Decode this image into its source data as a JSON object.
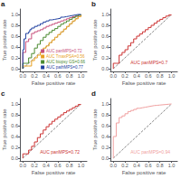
{
  "chart_data": [
    {
      "type": "line",
      "title": "a",
      "xlabel": "False positive rate",
      "ylabel": "True positive rate",
      "xlim": [
        -0.05,
        1.1
      ],
      "ylim": [
        -0.05,
        1.1
      ],
      "xticks": [
        {
          "value": 0.0,
          "label": "0.0"
        },
        0.2,
        0.4,
        0.6,
        0.8,
        {
          "value": 1.0,
          "label": "1.0"
        }
      ],
      "yticks": [
        {
          "value": 0.0,
          "label": "0.0"
        },
        0.2,
        0.4,
        0.6,
        0.8,
        {
          "value": 1.0,
          "label": "1.0"
        }
      ],
      "grid": false,
      "legend": "lower right",
      "series": [
        {
          "type": "line",
          "color": "#555555",
          "line_style": "dashed",
          "x": [
            0,
            1
          ],
          "values": [
            0,
            1
          ]
        },
        {
          "type": "step",
          "name": "AUC panMPS=0.72",
          "color": "#c8507d",
          "x": [
            0.0,
            0.0,
            0.05,
            0.05,
            0.1,
            0.15,
            0.15,
            0.2,
            0.25,
            0.3,
            0.35,
            0.4,
            0.45,
            0.5,
            0.55,
            0.6,
            0.65,
            0.7,
            0.75,
            0.8,
            0.85,
            0.9,
            0.95,
            1.0
          ],
          "values": [
            0.0,
            0.3,
            0.3,
            0.5,
            0.55,
            0.55,
            0.65,
            0.68,
            0.7,
            0.72,
            0.75,
            0.78,
            0.8,
            0.82,
            0.84,
            0.86,
            0.88,
            0.9,
            0.92,
            0.94,
            0.96,
            0.97,
            0.99,
            1.0
          ]
        },
        {
          "type": "step",
          "name": "AUC TmaxPSA=0.56",
          "color": "#e8a020",
          "x": [
            0.0,
            0.0,
            0.1,
            0.15,
            0.2,
            0.25,
            0.3,
            0.35,
            0.4,
            0.45,
            0.5,
            0.55,
            0.6,
            0.65,
            0.7,
            0.75,
            0.8,
            0.85,
            0.9,
            0.95,
            1.0
          ],
          "values": [
            0.0,
            0.05,
            0.05,
            0.15,
            0.2,
            0.25,
            0.3,
            0.38,
            0.42,
            0.48,
            0.53,
            0.58,
            0.63,
            0.68,
            0.73,
            0.78,
            0.83,
            0.88,
            0.92,
            0.96,
            1.0
          ]
        },
        {
          "type": "step",
          "name": "AUC biopsy GS=0.66",
          "color": "#4a8a30",
          "x": [
            0.0,
            0.0,
            0.05,
            0.1,
            0.15,
            0.2,
            0.25,
            0.3,
            0.35,
            0.4,
            0.45,
            0.5,
            0.55,
            0.6,
            0.65,
            0.7,
            0.75,
            0.8,
            0.85,
            0.9,
            0.95,
            1.0
          ],
          "values": [
            0.0,
            0.1,
            0.1,
            0.2,
            0.28,
            0.38,
            0.45,
            0.52,
            0.58,
            0.63,
            0.67,
            0.71,
            0.74,
            0.78,
            0.82,
            0.85,
            0.88,
            0.91,
            0.94,
            0.97,
            0.99,
            1.0
          ]
        },
        {
          "type": "step",
          "name": "AUC pathMPS=0.77",
          "color": "#2040a0",
          "x": [
            0.0,
            0.0,
            0.02,
            0.02,
            0.05,
            0.05,
            0.1,
            0.12,
            0.15,
            0.2,
            0.25,
            0.3,
            0.35,
            0.4,
            0.45,
            0.5,
            0.55,
            0.6,
            0.65,
            0.7,
            0.75,
            0.8,
            0.85,
            0.9,
            0.95,
            1.0
          ],
          "values": [
            0.0,
            0.35,
            0.35,
            0.55,
            0.55,
            0.65,
            0.68,
            0.72,
            0.75,
            0.78,
            0.8,
            0.83,
            0.86,
            0.88,
            0.9,
            0.91,
            0.92,
            0.93,
            0.95,
            0.96,
            0.97,
            0.98,
            0.99,
            1.0,
            1.0,
            1.0
          ]
        }
      ]
    },
    {
      "type": "line",
      "title": "b",
      "xlabel": "False positive rate",
      "ylabel": "True positive rate",
      "xlim": [
        -0.05,
        1.1
      ],
      "ylim": [
        -0.05,
        1.1
      ],
      "xticks": [
        {
          "value": 0.0,
          "label": "0.0"
        },
        0.2,
        0.4,
        0.6,
        0.8,
        {
          "value": 1.0,
          "label": "1.0"
        }
      ],
      "yticks": [
        {
          "value": 0.0,
          "label": "0.0"
        },
        0.2,
        0.4,
        0.6,
        0.8,
        {
          "value": 1.0,
          "label": "1.0"
        }
      ],
      "grid": false,
      "annotation": "AUC panMPS=0.7",
      "series": [
        {
          "type": "line",
          "color": "#555555",
          "line_style": "dashed",
          "x": [
            0,
            1
          ],
          "values": [
            0,
            1
          ]
        },
        {
          "type": "step",
          "color": "#cc3333",
          "x": [
            0.0,
            0.0,
            0.05,
            0.1,
            0.1,
            0.15,
            0.2,
            0.25,
            0.3,
            0.35,
            0.4,
            0.45,
            0.5,
            0.55,
            0.6,
            0.65,
            0.7,
            0.75,
            0.8,
            0.85,
            0.9,
            0.95,
            1.0
          ],
          "values": [
            0.0,
            0.1,
            0.1,
            0.1,
            0.25,
            0.3,
            0.35,
            0.42,
            0.48,
            0.55,
            0.6,
            0.64,
            0.68,
            0.72,
            0.76,
            0.8,
            0.84,
            0.88,
            0.91,
            0.94,
            0.97,
            0.99,
            1.0
          ]
        }
      ]
    },
    {
      "type": "line",
      "title": "c",
      "xlabel": "False positive rate",
      "ylabel": "True positive rate",
      "xlim": [
        -0.05,
        1.1
      ],
      "ylim": [
        -0.05,
        1.1
      ],
      "xticks": [
        {
          "value": 0.0,
          "label": "0.0"
        },
        0.2,
        0.4,
        0.6,
        0.8,
        {
          "value": 1.0,
          "label": "1.0"
        }
      ],
      "yticks": [
        {
          "value": 0.0,
          "label": "0.0"
        },
        0.2,
        0.4,
        0.6,
        0.8,
        {
          "value": 1.0,
          "label": "1.0"
        }
      ],
      "grid": false,
      "annotation": "AUC panMPS=0.72",
      "series": [
        {
          "type": "line",
          "color": "#555555",
          "line_style": "dashed",
          "x": [
            0,
            1
          ],
          "values": [
            0,
            1
          ]
        },
        {
          "type": "step",
          "color": "#cc3333",
          "x": [
            0.0,
            0.0,
            0.05,
            0.1,
            0.15,
            0.2,
            0.25,
            0.3,
            0.35,
            0.4,
            0.45,
            0.5,
            0.55,
            0.6,
            0.65,
            0.7,
            0.75,
            0.8,
            0.85,
            0.9,
            0.95,
            1.0
          ],
          "values": [
            0.0,
            0.08,
            0.08,
            0.15,
            0.22,
            0.3,
            0.38,
            0.45,
            0.52,
            0.58,
            0.63,
            0.68,
            0.72,
            0.76,
            0.8,
            0.84,
            0.87,
            0.9,
            0.93,
            0.96,
            0.99,
            1.0
          ]
        }
      ]
    },
    {
      "type": "line",
      "title": "d",
      "xlabel": "False positive rate",
      "ylabel": "True positive rate",
      "xlim": [
        -0.05,
        1.1
      ],
      "ylim": [
        -0.05,
        1.1
      ],
      "xticks": [
        {
          "value": 0.0,
          "label": "0.0"
        },
        0.2,
        0.4,
        0.6,
        0.8,
        {
          "value": 1.0,
          "label": "1.0"
        }
      ],
      "yticks": [
        {
          "value": 0.0,
          "label": "0.0"
        },
        0.2,
        0.4,
        0.6,
        0.8,
        {
          "value": 1.0,
          "label": "1.0"
        }
      ],
      "grid": false,
      "annotation": "AUC panMPS=0.94",
      "series": [
        {
          "type": "line",
          "color": "#555555",
          "line_style": "dashed",
          "x": [
            0,
            1
          ],
          "values": [
            0,
            1
          ]
        },
        {
          "type": "step",
          "color": "#f0a0a0",
          "x": [
            0.0,
            0.0,
            0.05,
            0.05,
            0.1,
            0.1,
            0.15,
            0.2,
            0.25,
            0.3,
            0.35,
            0.4,
            0.45,
            0.5,
            0.55,
            0.6,
            0.65,
            0.7,
            0.75,
            0.8,
            0.85,
            0.9,
            0.95,
            1.0
          ],
          "values": [
            0.0,
            0.4,
            0.4,
            0.65,
            0.65,
            0.75,
            0.78,
            0.82,
            0.86,
            0.88,
            0.9,
            0.92,
            0.93,
            0.94,
            0.95,
            0.96,
            0.97,
            0.975,
            0.98,
            0.985,
            0.99,
            0.995,
            1.0,
            1.0
          ]
        }
      ]
    }
  ]
}
